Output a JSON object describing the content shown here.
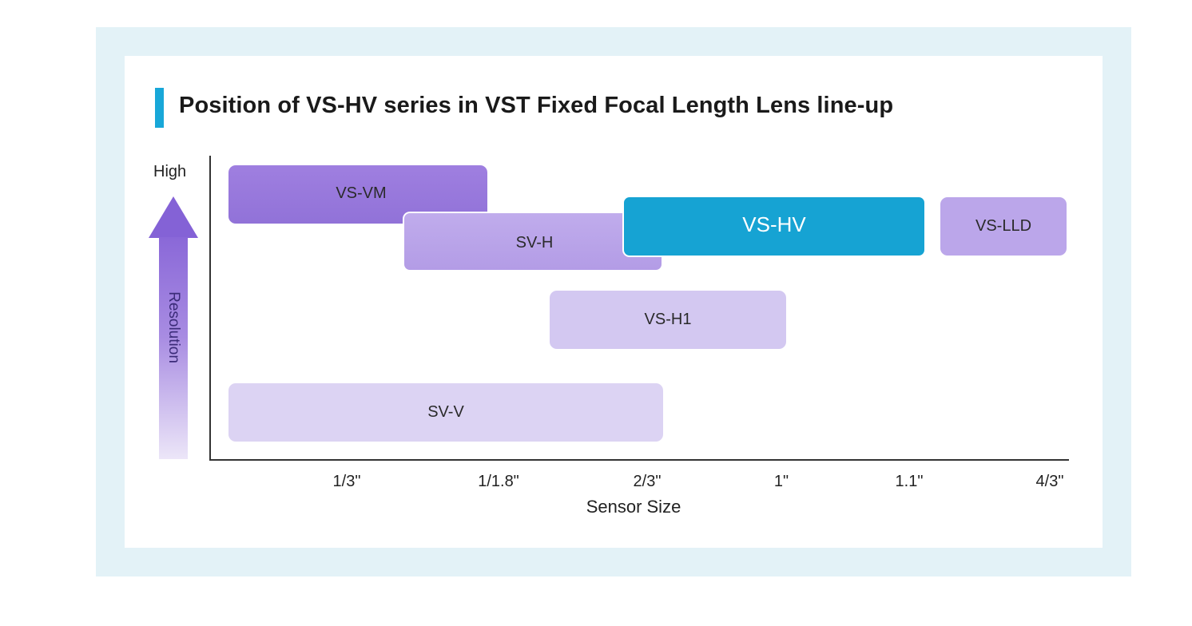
{
  "title": "Position of VS-HV series in VST Fixed Focal Length Lens line-up",
  "y_axis": {
    "top_label": "High",
    "label": "Resolution"
  },
  "x_axis": {
    "title": "Sensor Size",
    "ticks": [
      "1/3\"",
      "1/1.8\"",
      "2/3\"",
      "1\"",
      "1.1\"",
      "4/3\""
    ]
  },
  "series": [
    {
      "name": "VS-VM",
      "from": "< 1/3\"",
      "to": "1/1.8\"",
      "resolution_rank": 1
    },
    {
      "name": "SV-H",
      "from": "1/3\"",
      "to": "2/3\"",
      "resolution_rank": 2
    },
    {
      "name": "VS-HV",
      "from": "2/3\"",
      "to": "1.1\"",
      "resolution_rank": 2
    },
    {
      "name": "VS-LLD",
      "from": "1.1\"",
      "to": "4/3\"",
      "resolution_rank": 2
    },
    {
      "name": "VS-H1",
      "from": "1/1.8\"",
      "to": "1\"",
      "resolution_rank": 3
    },
    {
      "name": "SV-V",
      "from": "< 1/3\"",
      "to": "2/3\"",
      "resolution_rank": 4
    }
  ],
  "colors": {
    "accent": "#18a7d8",
    "highlight": "#16a3d3",
    "purple": "#9172d8",
    "panel_bg": "#e3f2f7"
  }
}
